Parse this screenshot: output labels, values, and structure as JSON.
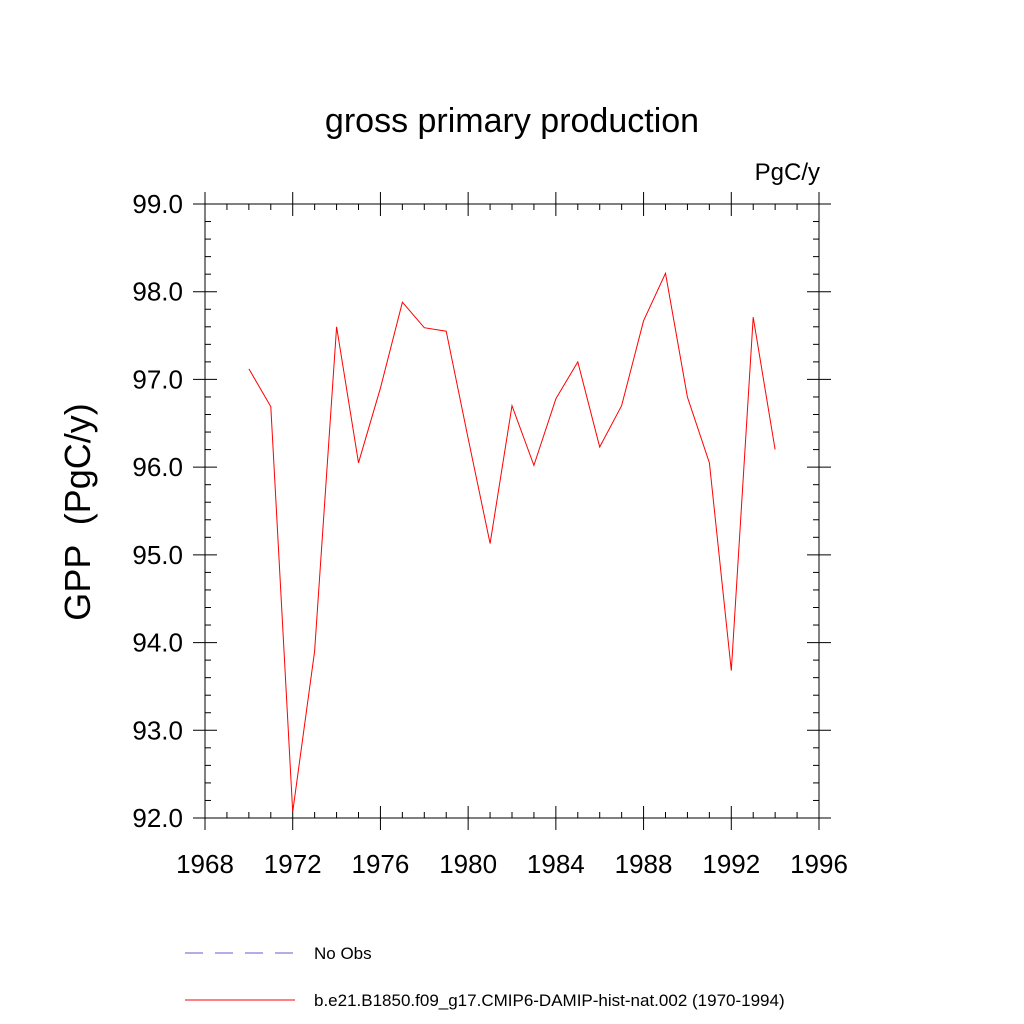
{
  "chart_data": {
    "type": "line",
    "title": "gross primary production",
    "units_label": "PgC/y",
    "ylabel": "GPP  (PgC/y)",
    "xlabel": "",
    "xlim": [
      1968,
      1996
    ],
    "ylim": [
      92.0,
      99.0
    ],
    "xticks": [
      "1968",
      "1972",
      "1976",
      "1980",
      "1984",
      "1988",
      "1992",
      "1996"
    ],
    "yticks": [
      "92.0",
      "93.0",
      "94.0",
      "95.0",
      "96.0",
      "97.0",
      "98.0",
      "99.0"
    ],
    "grid": false,
    "legend_position": "bottom",
    "series": [
      {
        "name": "No Obs",
        "color": "#6a5acd",
        "style": "dashed",
        "x": [],
        "y": []
      },
      {
        "name": "b.e21.B1850.f09_g17.CMIP6-DAMIP-hist-nat.002 (1970-1994)",
        "color": "#ff0000",
        "style": "solid",
        "x": [
          1970,
          1971,
          1972,
          1973,
          1974,
          1975,
          1976,
          1977,
          1978,
          1979,
          1980,
          1981,
          1982,
          1983,
          1984,
          1985,
          1986,
          1987,
          1988,
          1989,
          1990,
          1991,
          1992,
          1993,
          1994
        ],
        "y": [
          97.12,
          96.69,
          92.07,
          93.9,
          97.6,
          96.05,
          96.9,
          97.88,
          97.59,
          97.55,
          96.33,
          95.13,
          96.7,
          96.02,
          96.78,
          97.2,
          96.23,
          96.7,
          97.67,
          98.21,
          96.8,
          96.05,
          93.68,
          97.71,
          96.2
        ]
      }
    ]
  }
}
